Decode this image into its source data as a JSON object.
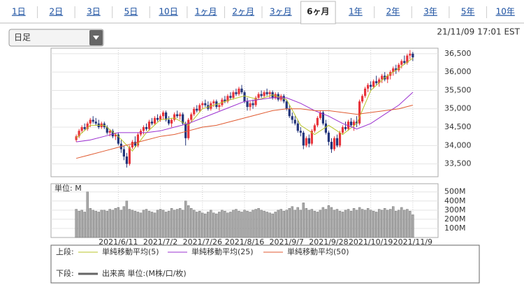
{
  "tabs": [
    "1日",
    "2日",
    "3日",
    "5日",
    "10日",
    "1ヶ月",
    "2ヶ月",
    "3ヶ月",
    "6ヶ月",
    "1年",
    "2年",
    "3年",
    "5年",
    "10年"
  ],
  "dropdown": "日足",
  "timestamp": "21/11/09 17:01 EST",
  "legend": {
    "upper_label": "上段:",
    "lower_label": "下段:",
    "volume": "出来高 単位:(M株/口/枚)"
  },
  "chart_data": [
    {
      "type": "candlestick",
      "up_color": "#e8333a",
      "down_color": "#22347a",
      "xlim": [
        -9,
        129
      ],
      "ylim": [
        33150,
        36650
      ],
      "yticks": [
        {
          "value": 33500,
          "label": "33,500"
        },
        {
          "value": 34000,
          "label": "34,000"
        },
        {
          "value": 34500,
          "label": "34,500"
        },
        {
          "value": 35000,
          "label": "35,000"
        },
        {
          "value": 35500,
          "label": "35,500"
        },
        {
          "value": 36000,
          "label": "36,000"
        },
        {
          "value": 36500,
          "label": "36,500"
        }
      ],
      "ohlc": [
        [
          34150,
          34300,
          34100,
          34250
        ],
        [
          34250,
          34450,
          34200,
          34400
        ],
        [
          34400,
          34550,
          34350,
          34500
        ],
        [
          34500,
          34600,
          34400,
          34450
        ],
        [
          34450,
          34650,
          34400,
          34600
        ],
        [
          34600,
          34750,
          34500,
          34700
        ],
        [
          34700,
          34800,
          34600,
          34650
        ],
        [
          34650,
          34750,
          34550,
          34600
        ],
        [
          34600,
          34700,
          34450,
          34500
        ],
        [
          34500,
          34650,
          34450,
          34600
        ],
        [
          34600,
          34650,
          34450,
          34500
        ],
        [
          34500,
          34550,
          34300,
          34350
        ],
        [
          34350,
          34450,
          34250,
          34400
        ],
        [
          34400,
          34450,
          34200,
          34250
        ],
        [
          34250,
          34350,
          34150,
          34300
        ],
        [
          34300,
          34350,
          34000,
          34050
        ],
        [
          34050,
          34150,
          33800,
          33900
        ],
        [
          33900,
          34000,
          33600,
          33700
        ],
        [
          33700,
          33800,
          33400,
          33500
        ],
        [
          33500,
          34000,
          33450,
          33950
        ],
        [
          33950,
          34150,
          33900,
          34100
        ],
        [
          34100,
          34250,
          33950,
          34000
        ],
        [
          34000,
          34350,
          33950,
          34300
        ],
        [
          34300,
          34450,
          34250,
          34400
        ],
        [
          34400,
          34550,
          34300,
          34500
        ],
        [
          34500,
          34600,
          34400,
          34450
        ],
        [
          34450,
          34700,
          34400,
          34650
        ],
        [
          34650,
          34750,
          34550,
          34600
        ],
        [
          34600,
          34800,
          34550,
          34750
        ],
        [
          34750,
          34850,
          34650,
          34700
        ],
        [
          34700,
          34850,
          34650,
          34800
        ],
        [
          34800,
          34950,
          34700,
          34900
        ],
        [
          34900,
          34950,
          34650,
          34700
        ],
        [
          34700,
          34800,
          34550,
          34600
        ],
        [
          34600,
          34750,
          34500,
          34700
        ],
        [
          34700,
          34900,
          34650,
          34850
        ],
        [
          34850,
          34950,
          34750,
          34800
        ],
        [
          34800,
          34900,
          34700,
          34850
        ],
        [
          34850,
          34900,
          34550,
          34600
        ],
        [
          34600,
          34650,
          34000,
          34200
        ],
        [
          34200,
          34750,
          34150,
          34700
        ],
        [
          34700,
          34900,
          34650,
          34850
        ],
        [
          34850,
          35050,
          34800,
          35000
        ],
        [
          35000,
          35100,
          34900,
          34950
        ],
        [
          34950,
          35150,
          34900,
          35100
        ],
        [
          35100,
          35200,
          35000,
          35150
        ],
        [
          35150,
          35250,
          35050,
          35100
        ],
        [
          35100,
          35200,
          34950,
          35000
        ],
        [
          35000,
          35200,
          34950,
          35150
        ],
        [
          35150,
          35250,
          35050,
          35200
        ],
        [
          35200,
          35250,
          35000,
          35050
        ],
        [
          35050,
          35150,
          34950,
          35100
        ],
        [
          35100,
          35300,
          35050,
          35250
        ],
        [
          35250,
          35350,
          35150,
          35200
        ],
        [
          35200,
          35400,
          35150,
          35350
        ],
        [
          35350,
          35450,
          35250,
          35300
        ],
        [
          35300,
          35500,
          35250,
          35450
        ],
        [
          35450,
          35550,
          35350,
          35400
        ],
        [
          35400,
          35600,
          35350,
          35550
        ],
        [
          35550,
          35650,
          35400,
          35450
        ],
        [
          35450,
          35500,
          35150,
          35200
        ],
        [
          35200,
          35300,
          34950,
          35050
        ],
        [
          35050,
          35200,
          34950,
          35150
        ],
        [
          35150,
          35250,
          35000,
          35100
        ],
        [
          35100,
          35350,
          35050,
          35300
        ],
        [
          35300,
          35450,
          35250,
          35400
        ],
        [
          35400,
          35500,
          35300,
          35350
        ],
        [
          35350,
          35500,
          35300,
          35450
        ],
        [
          35450,
          35550,
          35350,
          35400
        ],
        [
          35400,
          35500,
          35300,
          35450
        ],
        [
          35450,
          35500,
          35250,
          35300
        ],
        [
          35300,
          35450,
          35250,
          35400
        ],
        [
          35400,
          35450,
          35200,
          35250
        ],
        [
          35250,
          35400,
          35200,
          35350
        ],
        [
          35350,
          35400,
          35150,
          35200
        ],
        [
          35200,
          35250,
          34950,
          35000
        ],
        [
          35000,
          35100,
          34750,
          34800
        ],
        [
          34800,
          34900,
          34600,
          34700
        ],
        [
          34700,
          34800,
          34550,
          34600
        ],
        [
          34600,
          34700,
          34350,
          34400
        ],
        [
          34400,
          34500,
          34250,
          34350
        ],
        [
          34350,
          34400,
          33900,
          34000
        ],
        [
          34000,
          34250,
          33950,
          34200
        ],
        [
          34200,
          34300,
          33950,
          34050
        ],
        [
          34050,
          34450,
          34000,
          34400
        ],
        [
          34400,
          34600,
          34350,
          34550
        ],
        [
          34550,
          34800,
          34500,
          34750
        ],
        [
          34750,
          34950,
          34700,
          34900
        ],
        [
          34900,
          34950,
          34550,
          34600
        ],
        [
          34600,
          34700,
          34300,
          34350
        ],
        [
          34350,
          34400,
          34000,
          34100
        ],
        [
          34100,
          34200,
          33800,
          33900
        ],
        [
          33900,
          34250,
          33850,
          34200
        ],
        [
          34200,
          34300,
          33950,
          34000
        ],
        [
          34000,
          34400,
          33950,
          34350
        ],
        [
          34350,
          34550,
          34300,
          34500
        ],
        [
          34500,
          34650,
          34400,
          34450
        ],
        [
          34450,
          34700,
          34400,
          34650
        ],
        [
          34650,
          34750,
          34500,
          34550
        ],
        [
          34550,
          34700,
          34400,
          34650
        ],
        [
          34650,
          34800,
          34500,
          34600
        ],
        [
          34600,
          35250,
          34550,
          35200
        ],
        [
          35200,
          35400,
          35150,
          35350
        ],
        [
          35350,
          35600,
          35300,
          35550
        ],
        [
          35550,
          35700,
          35450,
          35650
        ],
        [
          35650,
          35750,
          35500,
          35600
        ],
        [
          35600,
          35800,
          35550,
          35750
        ],
        [
          35750,
          35900,
          35650,
          35700
        ],
        [
          35700,
          35850,
          35600,
          35800
        ],
        [
          35800,
          35950,
          35700,
          35900
        ],
        [
          35900,
          36000,
          35750,
          35800
        ],
        [
          35800,
          35950,
          35700,
          35900
        ],
        [
          35900,
          36050,
          35800,
          36000
        ],
        [
          36000,
          36150,
          35900,
          36100
        ],
        [
          36100,
          36200,
          35950,
          36050
        ],
        [
          36050,
          36250,
          36000,
          36200
        ],
        [
          36200,
          36350,
          36100,
          36300
        ],
        [
          36300,
          36450,
          36200,
          36250
        ],
        [
          36250,
          36500,
          36200,
          36450
        ],
        [
          36450,
          36600,
          36350,
          36500
        ],
        [
          36500,
          36550,
          36300,
          36400
        ]
      ],
      "series": [
        {
          "name": "単純移動平均(5)",
          "color": "#b8c428",
          "x": [
            0,
            5,
            10,
            15,
            20,
            25,
            30,
            35,
            40,
            45,
            50,
            55,
            60,
            65,
            70,
            75,
            80,
            85,
            90,
            95,
            100,
            105,
            110,
            115,
            120
          ],
          "values": [
            34200,
            34550,
            34550,
            34250,
            33850,
            34350,
            34700,
            34750,
            34550,
            35000,
            35120,
            35250,
            35350,
            35250,
            35380,
            35250,
            34550,
            34300,
            34550,
            34300,
            34600,
            35500,
            35850,
            36100,
            36380
          ]
        },
        {
          "name": "単純移動平均(25)",
          "color": "#9b30d0",
          "x": [
            0,
            5,
            10,
            15,
            20,
            25,
            30,
            35,
            40,
            45,
            50,
            55,
            60,
            65,
            70,
            75,
            80,
            85,
            90,
            95,
            100,
            105,
            110,
            115,
            120
          ],
          "values": [
            34100,
            34150,
            34250,
            34350,
            34350,
            34350,
            34400,
            34500,
            34600,
            34750,
            34900,
            35050,
            35200,
            35250,
            35300,
            35300,
            35150,
            34950,
            34800,
            34600,
            34450,
            34600,
            34850,
            35100,
            35450
          ]
        },
        {
          "name": "単純移動平均(50)",
          "color": "#e05a30",
          "x": [
            0,
            5,
            10,
            15,
            20,
            25,
            30,
            35,
            40,
            45,
            50,
            55,
            60,
            65,
            70,
            75,
            80,
            85,
            90,
            95,
            100,
            105,
            110,
            115,
            120
          ],
          "values": [
            33650,
            33750,
            33850,
            33950,
            34050,
            34150,
            34250,
            34300,
            34400,
            34500,
            34550,
            34650,
            34750,
            34850,
            34950,
            35000,
            35000,
            34950,
            34950,
            34900,
            34850,
            34900,
            34950,
            35000,
            35100
          ]
        }
      ]
    },
    {
      "type": "bar",
      "y_label": "単位: M",
      "color": "#a8a8a8",
      "xlim": [
        -9,
        129
      ],
      "ylim": [
        0,
        590
      ],
      "yticks": [
        {
          "value": 100,
          "label": "100M"
        },
        {
          "value": 200,
          "label": "200M"
        },
        {
          "value": 300,
          "label": "300M"
        },
        {
          "value": 400,
          "label": "400M"
        },
        {
          "value": 500,
          "label": "500M"
        }
      ],
      "xticks": [
        {
          "value": 15,
          "label": "2021/6/11"
        },
        {
          "value": 30,
          "label": "2021/7/2"
        },
        {
          "value": 45,
          "label": "2021/7/26"
        },
        {
          "value": 60,
          "label": "2021/8/16"
        },
        {
          "value": 75,
          "label": "2021/9/7"
        },
        {
          "value": 90,
          "label": "2021/9/28"
        },
        {
          "value": 105,
          "label": "2021/10/19"
        },
        {
          "value": 120,
          "label": "2021/11/9"
        }
      ],
      "values": [
        310,
        290,
        300,
        280,
        500,
        320,
        300,
        290,
        280,
        300,
        300,
        290,
        310,
        300,
        320,
        330,
        300,
        340,
        400,
        310,
        300,
        290,
        280,
        270,
        300,
        310,
        290,
        280,
        270,
        300,
        310,
        300,
        280,
        290,
        320,
        300,
        310,
        320,
        300,
        400,
        350,
        320,
        300,
        280,
        290,
        270,
        260,
        280,
        300,
        270,
        260,
        280,
        300,
        290,
        270,
        280,
        300,
        310,
        290,
        280,
        300,
        290,
        280,
        300,
        310,
        320,
        300,
        290,
        280,
        270,
        260,
        280,
        300,
        310,
        290,
        300,
        320,
        340,
        300,
        330,
        300,
        380,
        320,
        300,
        310,
        290,
        280,
        300,
        330,
        310,
        350,
        330,
        300,
        310,
        290,
        280,
        300,
        310,
        290,
        320,
        300,
        330,
        310,
        300,
        320,
        300,
        290,
        280,
        310,
        300,
        320,
        300,
        310,
        340,
        290,
        300,
        330,
        300,
        310,
        290,
        250
      ]
    }
  ]
}
